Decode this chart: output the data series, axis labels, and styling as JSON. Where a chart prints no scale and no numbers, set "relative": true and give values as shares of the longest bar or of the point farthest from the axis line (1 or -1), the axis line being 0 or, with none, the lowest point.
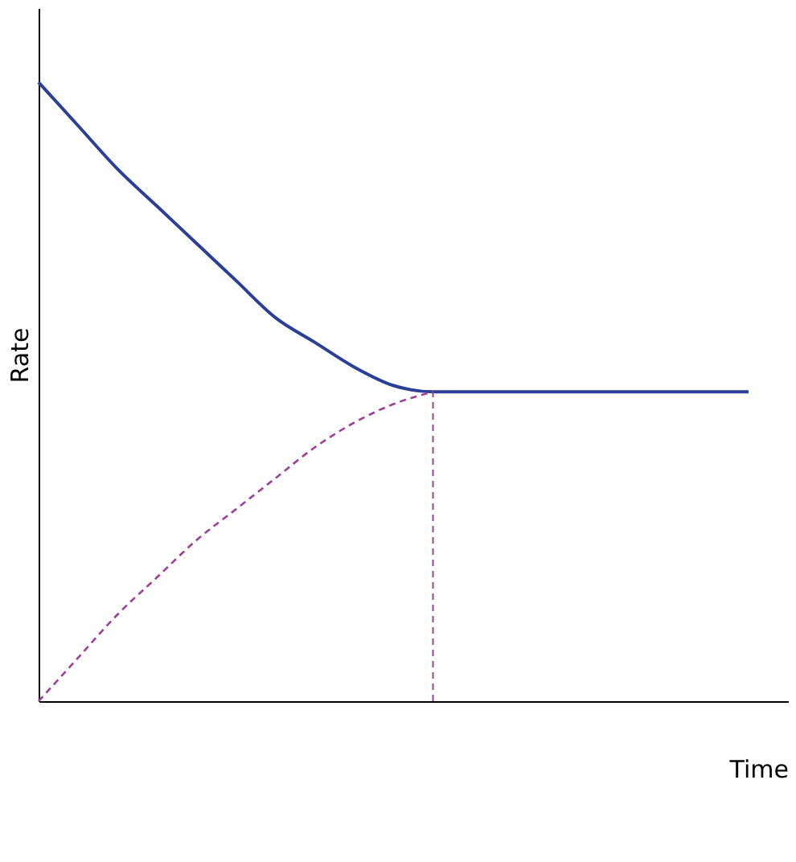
{
  "chart_data": {
    "type": "line",
    "relative": true,
    "xlabel": "Time",
    "ylabel": "Rate",
    "grid": false,
    "categories": [
      null,
      null,
      null,
      null,
      null,
      null,
      null,
      null,
      null,
      null,
      null,
      null,
      null,
      null,
      null,
      null,
      null,
      null,
      null,
      null
    ],
    "series": [
      {
        "color": "#2b3f96",
        "line_style": "solid",
        "values": [
          1.0,
          0.93,
          0.86,
          0.8,
          0.74,
          0.68,
          0.62,
          0.58,
          0.54,
          0.51,
          0.5,
          0.5,
          0.5,
          0.5,
          0.5,
          0.5,
          0.5,
          0.5,
          0.5,
          null
        ]
      },
      {
        "color": "#9c3f9c",
        "line_style": "dashed",
        "values": [
          0.0,
          0.07,
          0.14,
          0.2,
          0.26,
          0.31,
          0.36,
          0.41,
          0.45,
          0.48,
          0.5,
          null,
          null,
          null,
          null,
          null,
          null,
          null,
          null,
          null
        ]
      }
    ]
  }
}
